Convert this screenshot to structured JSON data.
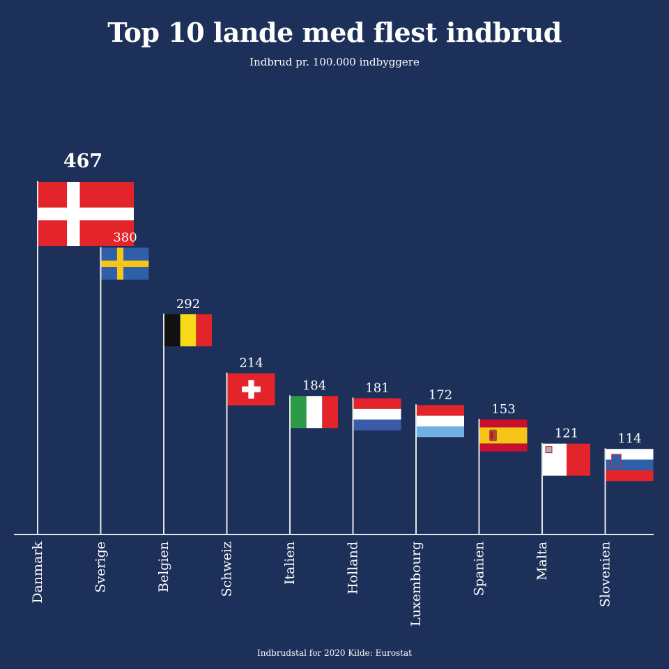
{
  "title": "Top 10 lande med flest indbrud",
  "subtitle": "Indbrud pr. 100.000 indbyggere",
  "footnote": "Indbrudstal for 2020  Kilde: Eurostat",
  "colors": {
    "background": "#1d3059",
    "text": "#ffffff",
    "pole": "#e6e6e6"
  },
  "chart_data": {
    "type": "bar",
    "title": "Top 10 lande med flest indbrud",
    "subtitle": "Indbrud pr. 100.000 indbyggere",
    "xlabel": "",
    "ylabel": "",
    "grid": false,
    "categories": [
      "Danmark",
      "Sverige",
      "Belgien",
      "Schweiz",
      "Italien",
      "Holland",
      "Luxembourg",
      "Spanien",
      "Malta",
      "Slovenien"
    ],
    "values": [
      467,
      380,
      292,
      214,
      184,
      181,
      172,
      153,
      121,
      114
    ],
    "value_labels": [
      "467",
      "380",
      "292",
      "214",
      "184",
      "181",
      "172",
      "153",
      "121",
      "114"
    ],
    "marker_icons": [
      "flag-denmark",
      "flag-sweden",
      "flag-belgium",
      "flag-switzerland",
      "flag-italy",
      "flag-netherlands",
      "flag-luxembourg",
      "flag-spain",
      "flag-malta",
      "flag-slovenia"
    ]
  }
}
